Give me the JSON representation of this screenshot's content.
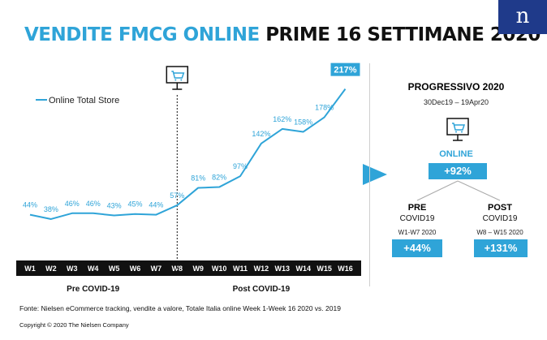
{
  "header": {
    "title_highlight": "VENDITE FMCG ONLINE",
    "title_rest": "PRIME 16 SETTIMANE 2020",
    "logo": "n"
  },
  "chart_data": {
    "type": "line",
    "categories": [
      "W1",
      "W2",
      "W3",
      "W4",
      "W5",
      "W6",
      "W7",
      "W8",
      "W9",
      "W10",
      "W11",
      "W12",
      "W13",
      "W14",
      "W15",
      "W16"
    ],
    "series": [
      {
        "name": "Online Total Store",
        "values": [
          44,
          38,
          46,
          46,
          43,
          45,
          44,
          57,
          81,
          82,
          97,
          142,
          162,
          158,
          178,
          217
        ],
        "labels": [
          "44%",
          "38%",
          "46%",
          "46%",
          "43%",
          "45%",
          "44%",
          "57%",
          "81%",
          "82%",
          "97%",
          "142%",
          "162%",
          "158%",
          "178%",
          "217%"
        ]
      }
    ],
    "highlight_last_label": true,
    "divider_after": "W8",
    "period_labels": [
      "Pre COVID-19",
      "Post COVID-19"
    ],
    "ylim": [
      0,
      230
    ],
    "legend_position": "top-left",
    "accent_color": "#2fa4d8",
    "axis_bar_color": "#111111",
    "icon": "shopping-cart-monitor-icon"
  },
  "summary": {
    "title": "PROGRESSIVO 2020",
    "dates": "30Dec19 – 19Apr20",
    "online_label": "ONLINE",
    "online_value": "+92%",
    "pre_label": "PRE",
    "pre_sub": "COVID19",
    "pre_range": "W1-W7 2020",
    "pre_value": "+44%",
    "post_label": "POST",
    "post_sub": "COVID19",
    "post_range": "W8 – W15 2020",
    "post_value": "+131%",
    "icon": "shopping-cart-monitor-icon",
    "arrow_color": "#2fa4d8"
  },
  "footer": {
    "source": "Fonte: Nielsen eCommerce tracking, vendite a valore, Totale Italia online Week 1-Week 16 2020 vs. 2019",
    "copyright": "Copyright © 2020 The Nielsen Company"
  }
}
